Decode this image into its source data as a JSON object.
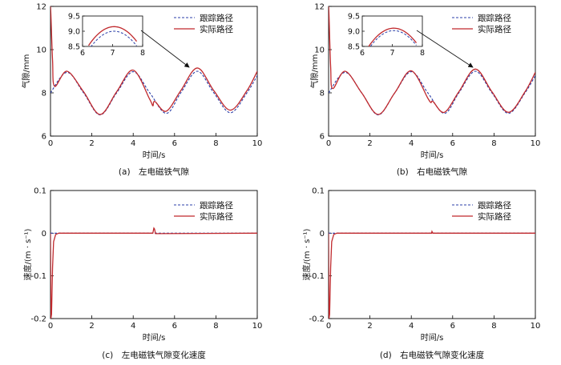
{
  "figure": {
    "panels": [
      {
        "caption": "(a)　左电磁铁气隙",
        "ylabel": "气隙/mm",
        "xlabel": "时间/s"
      },
      {
        "caption": "(b)　右电磁铁气隙",
        "ylabel": "气隙/mm",
        "xlabel": "时间/s"
      },
      {
        "caption": "(c)　左电磁铁气隙变化速度",
        "ylabel": "速度/(m · s⁻¹)",
        "xlabel": "时间/s"
      },
      {
        "caption": "(d)　右电磁铁气隙变化速度",
        "ylabel": "速度/(m · s⁻¹)",
        "xlabel": "时间/s"
      }
    ],
    "legend": {
      "tracking": "跟踪路径",
      "actual": "实际路径"
    }
  },
  "colors": {
    "tracking": "#2b3fa8",
    "actual": "#c0282c",
    "axis": "#000000"
  },
  "chart_data": [
    {
      "type": "line",
      "title": "(a) 左电磁铁气隙",
      "xlabel": "时间/s",
      "ylabel": "气隙/mm",
      "xlim": [
        0,
        10
      ],
      "ylim": [
        6,
        12
      ],
      "xticks": [
        0,
        2,
        4,
        6,
        8,
        10
      ],
      "yticks": [
        6,
        8,
        10,
        12
      ],
      "legend_position": "top-right",
      "grid": false,
      "series": [
        {
          "name": "跟踪路径",
          "style": "dashed",
          "x": [
            0,
            0.8,
            1.6,
            2.4,
            3.2,
            4.0,
            4.8,
            5.6,
            6.3,
            7.1,
            7.9,
            8.7,
            9.5,
            10
          ],
          "y": [
            8.0,
            8.95,
            8.0,
            6.98,
            8.0,
            8.98,
            8.0,
            7.05,
            8.0,
            9.0,
            8.0,
            7.08,
            8.0,
            8.8
          ]
        },
        {
          "name": "实际路径",
          "style": "solid",
          "x": [
            0,
            0.02,
            0.1,
            0.2,
            0.8,
            1.6,
            2.4,
            3.2,
            4.0,
            4.8,
            4.95,
            5.05,
            5.6,
            6.3,
            7.1,
            7.9,
            8.7,
            9.5,
            10
          ],
          "y": [
            12.0,
            11.6,
            9.5,
            8.3,
            9.0,
            8.05,
            7.0,
            8.05,
            9.05,
            7.7,
            7.4,
            7.6,
            7.15,
            8.1,
            9.15,
            8.1,
            7.2,
            8.1,
            9.0
          ]
        }
      ],
      "inset": {
        "xlim": [
          6,
          8
        ],
        "ylim": [
          8.5,
          9.5
        ],
        "xticks": [
          6,
          7,
          8
        ],
        "yticks": [
          8.5,
          9.0,
          9.5
        ],
        "tracking_peak": 9.0,
        "actual_peak": 9.15
      }
    },
    {
      "type": "line",
      "title": "(b) 右电磁铁气隙",
      "xlabel": "时间/s",
      "ylabel": "气隙/mm",
      "xlim": [
        0,
        10
      ],
      "ylim": [
        6,
        12
      ],
      "xticks": [
        0,
        2,
        4,
        6,
        8,
        10
      ],
      "yticks": [
        6,
        8,
        10,
        12
      ],
      "legend_position": "top-right",
      "grid": false,
      "series": [
        {
          "name": "跟踪路径",
          "style": "dashed",
          "x": [
            0,
            0.8,
            1.6,
            2.4,
            3.2,
            4.0,
            4.8,
            5.6,
            6.3,
            7.1,
            7.9,
            8.7,
            9.5,
            10
          ],
          "y": [
            8.0,
            8.95,
            8.0,
            6.98,
            8.0,
            8.98,
            8.0,
            7.05,
            8.0,
            9.0,
            8.0,
            7.05,
            8.0,
            8.8
          ]
        },
        {
          "name": "实际路径",
          "style": "solid",
          "x": [
            0,
            0.02,
            0.1,
            0.2,
            0.8,
            1.6,
            2.4,
            3.2,
            4.0,
            4.8,
            4.95,
            5.05,
            5.6,
            6.3,
            7.1,
            7.9,
            8.7,
            9.5,
            10
          ],
          "y": [
            12.0,
            11.6,
            9.2,
            8.2,
            9.0,
            8.0,
            7.0,
            8.0,
            9.02,
            7.75,
            7.55,
            7.6,
            7.1,
            8.05,
            9.1,
            8.05,
            7.1,
            8.05,
            8.95
          ]
        }
      ],
      "inset": {
        "xlim": [
          6,
          8
        ],
        "ylim": [
          8.5,
          9.5
        ],
        "xticks": [
          6,
          7,
          8
        ],
        "yticks": [
          8.5,
          9.0,
          9.5
        ],
        "tracking_peak": 9.02,
        "actual_peak": 9.1
      }
    },
    {
      "type": "line",
      "title": "(c) 左电磁铁气隙变化速度",
      "xlabel": "时间/s",
      "ylabel": "速度/(m · s⁻¹)",
      "xlim": [
        0,
        10
      ],
      "ylim": [
        -0.2,
        0.1
      ],
      "xticks": [
        0,
        2,
        4,
        6,
        8,
        10
      ],
      "yticks": [
        -0.2,
        -0.1,
        0,
        0.1
      ],
      "legend_position": "top-right",
      "grid": false,
      "series": [
        {
          "name": "跟踪路径",
          "style": "dashed",
          "x": [
            0,
            10
          ],
          "y": [
            0.0,
            0.0
          ]
        },
        {
          "name": "实际路径",
          "style": "solid",
          "x": [
            0,
            0.02,
            0.05,
            0.1,
            0.15,
            0.25,
            0.4,
            4.95,
            5.0,
            5.03,
            5.08,
            10
          ],
          "y": [
            0.0,
            -0.2,
            -0.19,
            -0.08,
            -0.02,
            -0.003,
            0.0,
            0.0,
            0.012,
            0.01,
            -0.001,
            0.0
          ]
        }
      ]
    },
    {
      "type": "line",
      "title": "(d) 右电磁铁气隙变化速度",
      "xlabel": "时间/s",
      "ylabel": "速度/(m · s⁻¹)",
      "xlim": [
        0,
        10
      ],
      "ylim": [
        -0.2,
        0.1
      ],
      "xticks": [
        0,
        2,
        4,
        6,
        8,
        10
      ],
      "yticks": [
        -0.2,
        -0.1,
        0,
        0.1
      ],
      "legend_position": "top-right",
      "grid": false,
      "series": [
        {
          "name": "跟踪路径",
          "style": "dashed",
          "x": [
            0,
            10
          ],
          "y": [
            0.0,
            0.0
          ]
        },
        {
          "name": "实际路径",
          "style": "solid",
          "x": [
            0,
            0.02,
            0.05,
            0.1,
            0.15,
            0.25,
            0.4,
            4.98,
            5.0,
            5.04,
            10
          ],
          "y": [
            0.0,
            -0.2,
            -0.19,
            -0.08,
            -0.02,
            -0.003,
            0.0,
            0.0,
            0.004,
            0.0,
            0.0
          ]
        }
      ]
    }
  ]
}
